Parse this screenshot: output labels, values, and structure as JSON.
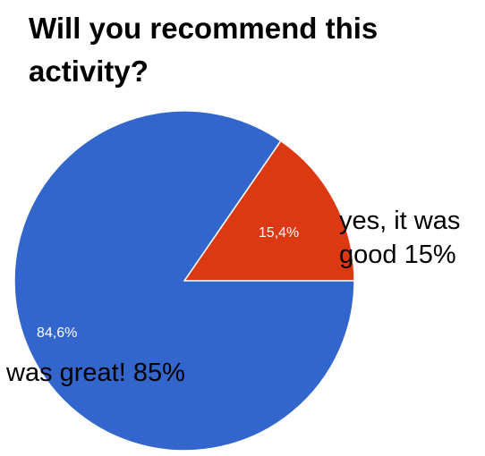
{
  "chart_data": {
    "type": "pie",
    "title": "Will you recommend this activity?",
    "slices": [
      {
        "value": 15.4,
        "label": "15,4%",
        "color": "#dc3912"
      },
      {
        "value": 84.6,
        "label": "84,6%",
        "color": "#3366cc"
      }
    ],
    "annotations": [
      {
        "text": "yes, it was good 15%"
      },
      {
        "text": "was great! 85%"
      }
    ]
  }
}
